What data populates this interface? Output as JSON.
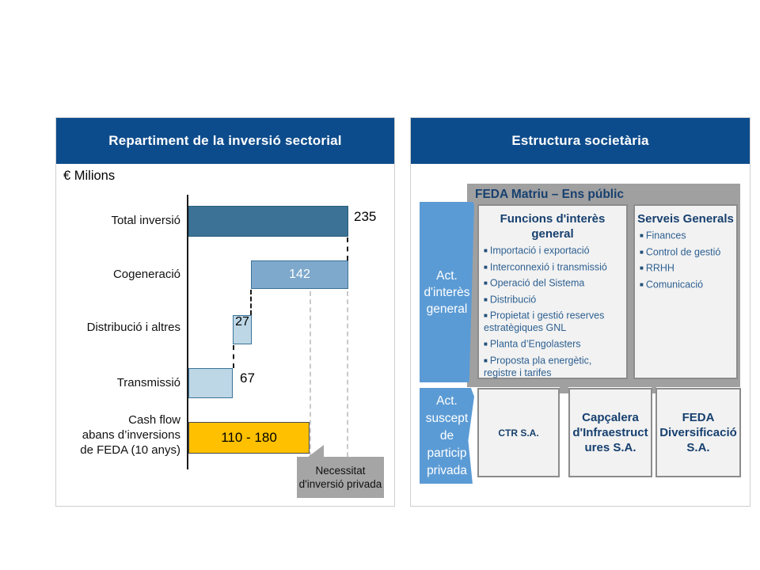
{
  "slide": {
    "left_panel": {
      "title": "Repartiment de la inversió sectorial",
      "unit_label": "€ Milions",
      "rows": [
        {
          "label": "Total inversió",
          "value_label": "235"
        },
        {
          "label": "Cogeneració",
          "value_label": "142"
        },
        {
          "label": "Distribució i altres",
          "value_label": "27"
        },
        {
          "label": "Transmissió",
          "value_label": "67"
        },
        {
          "label_lines": [
            "Cash flow",
            "abans d’inversions",
            "de FEDA (10 anys)"
          ],
          "value_label": "110 - 180"
        }
      ],
      "annotation": "Necessitat d'inversió privada"
    },
    "right_panel": {
      "title": "Estructura societària",
      "matriu": {
        "title": "FEDA Matriu – Ens públic",
        "side_label_lines": [
          "Act.",
          "d'interès",
          "general"
        ],
        "funcions": {
          "title": "Funcions d'interès general",
          "items": [
            "Importació i exportació",
            "Interconnexió i transmissió",
            "Operació del Sistema",
            "Distribució",
            "Propietat i gestió reserves estratègiques GNL",
            "Planta d’Engolasters",
            "Proposta pla energètic, registre i tarifes"
          ]
        },
        "serveis": {
          "title": "Serveis Generals",
          "items": [
            "Finances",
            "Control de gestió",
            "RRHH",
            "Comunicació"
          ]
        }
      },
      "privada": {
        "side_label_lines": [
          "Act.",
          "suscept",
          "de",
          "particip",
          "privada"
        ],
        "companies": [
          "CTR S.A.",
          "Capçalera d'Infraestructures S.A.",
          "FEDA Diversificació S.A."
        ]
      }
    }
  },
  "chart_data": {
    "type": "bar",
    "subtype": "horizontal-waterfall",
    "title": "Repartiment de la inversió sectorial",
    "unit": "€ Milions",
    "categories": [
      "Total inversió",
      "Cogeneració",
      "Distribució i altres",
      "Transmissió",
      "Cash flow abans d’inversions de FEDA (10 anys)"
    ],
    "values": [
      235,
      142,
      27,
      67,
      null
    ],
    "value_labels": [
      "235",
      "142",
      "27",
      "67",
      "110 - 180"
    ],
    "bar_ranges": [
      [
        0,
        235
      ],
      [
        93,
        235
      ],
      [
        67,
        94
      ],
      [
        0,
        67
      ],
      [
        0,
        180
      ]
    ],
    "xlim": [
      0,
      235
    ],
    "gridlines_x": [
      180,
      235
    ],
    "grid": "dashed-vertical",
    "annotation": "Necessitat d'inversió privada",
    "bar_colors": [
      "#3b7296",
      "#7fa9cc",
      "#bdd7e6",
      "#bdd7e6",
      "#ffc000"
    ]
  },
  "colors": {
    "header_blue": "#0d4c8c",
    "dark_navy_text": "#1f4e79",
    "accent_blue_box": "#5b9bd5",
    "bar_dark": "#3b7296",
    "bar_medium": "#7fa9cc",
    "bar_light": "#bdd7e6",
    "bar_orange": "#ffc000",
    "gray_container": "#a0a0a0",
    "annotation_gray": "#a5a5a5",
    "card_bg": "#f2f2f2"
  }
}
